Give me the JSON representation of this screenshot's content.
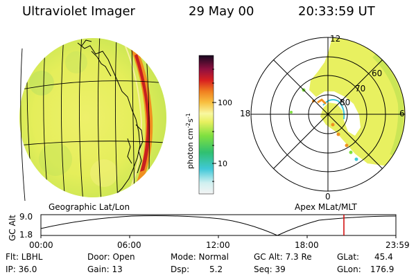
{
  "header": {
    "title": "Ultraviolet Imager",
    "date": "29 May 00",
    "time": "20:33:59 UT"
  },
  "colorbar": {
    "label": "photon cm",
    "label_sup1": "-2",
    "label_mid": "s",
    "label_sup2": "-1",
    "ticks": [
      "100",
      "10"
    ]
  },
  "polar_plot": {
    "mlt_labels": [
      "12",
      "18",
      "6",
      "0"
    ],
    "lat_labels": [
      "60",
      "70",
      "80"
    ]
  },
  "captions": {
    "left": "Geographic Lat/Lon",
    "right": "Apex MLat/MLT"
  },
  "altitude_plot": {
    "axis_label": "GC Alt",
    "y_ticks": [
      "9.0",
      "1.8"
    ],
    "x_ticks": [
      "00:00",
      "06:00",
      "12:00",
      "18:00",
      "23:59"
    ]
  },
  "status": {
    "flt": "Flt: LBHL",
    "ip": "IP: 36.0",
    "door": "Door: Open",
    "gain": "Gain: 13",
    "mode": "Mode: Normal",
    "dsp_label": "Dsp:",
    "dsp_value": "5.2",
    "gc_alt": "GC Alt: 7.3 Re",
    "seq": "Seq: 39",
    "glat_label": "GLat:",
    "glat_value": "45.4",
    "glon_label": "GLon:",
    "glon_value": "176.9"
  },
  "colors": {
    "image_base": "#e8f060",
    "aurora_red": "#c82020",
    "aurora_orange": "#f09020",
    "marker_red": "#d00000"
  }
}
